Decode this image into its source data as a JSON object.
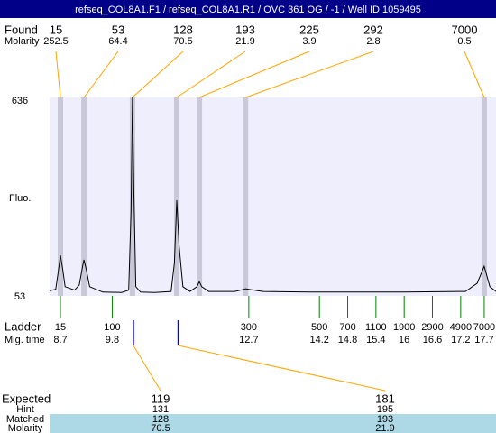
{
  "chart_data": {
    "type": "electropherogram",
    "title": "refseq_COL8A1.F1 / refseq_COL8A1.R1 / OVC 361 OG  / -1 / Well ID 1059495",
    "y_label": "Fluo.",
    "ylim": [
      53,
      636
    ],
    "yticks": [
      53,
      636
    ],
    "xlim": [
      8.47,
      17.95
    ],
    "row_labels": {
      "found": "Found",
      "molarity": "Molarity",
      "ladder": "Ladder",
      "mig_time": "Mig. time",
      "expected": "Expected",
      "hint": "Hint",
      "matched": "Matched",
      "exp_molarity": "Molarity"
    },
    "trace": {
      "color": "#000000",
      "x": [
        8.47,
        8.6,
        8.65,
        8.7,
        8.75,
        8.8,
        9.0,
        9.1,
        9.17,
        9.2,
        9.25,
        9.32,
        9.6,
        10.0,
        10.15,
        10.2,
        10.23,
        10.26,
        10.3,
        10.4,
        10.7,
        11.05,
        11.12,
        11.17,
        11.22,
        11.3,
        11.45,
        11.6,
        11.65,
        11.7,
        11.85,
        12.4,
        12.6,
        12.63,
        12.7,
        13.0,
        14,
        15,
        16,
        17.3,
        17.55,
        17.7,
        17.82,
        17.95
      ],
      "values": [
        68,
        72,
        120,
        172,
        130,
        80,
        70,
        85,
        140,
        159,
        130,
        80,
        64,
        63,
        70,
        300,
        636,
        350,
        80,
        64,
        63,
        66,
        150,
        334,
        200,
        80,
        66,
        80,
        95,
        80,
        66,
        66,
        72,
        74,
        72,
        66,
        64,
        64,
        64,
        66,
        90,
        140,
        80,
        66
      ]
    },
    "peaks": {
      "sizes": [
        15,
        53,
        128,
        193,
        225,
        292,
        7000
      ],
      "molarity": [
        252.5,
        64.4,
        70.5,
        21.9,
        3.9,
        2.8,
        0.5
      ],
      "times": [
        8.7,
        9.2,
        10.23,
        11.17,
        11.65,
        12.63,
        17.7
      ]
    },
    "ladder": {
      "sizes": [
        15,
        100,
        300,
        500,
        700,
        1100,
        1900,
        2900,
        4900,
        7000
      ],
      "times": [
        8.7,
        9.8,
        12.7,
        14.2,
        14.8,
        15.4,
        16,
        16.6,
        17.2,
        17.7
      ]
    },
    "expected": {
      "sizes": [
        119,
        181
      ],
      "hint": [
        131,
        195
      ],
      "matched": [
        128,
        193
      ],
      "molarity": [
        70.5,
        21.9
      ],
      "times": [
        10.25,
        11.2
      ]
    }
  }
}
